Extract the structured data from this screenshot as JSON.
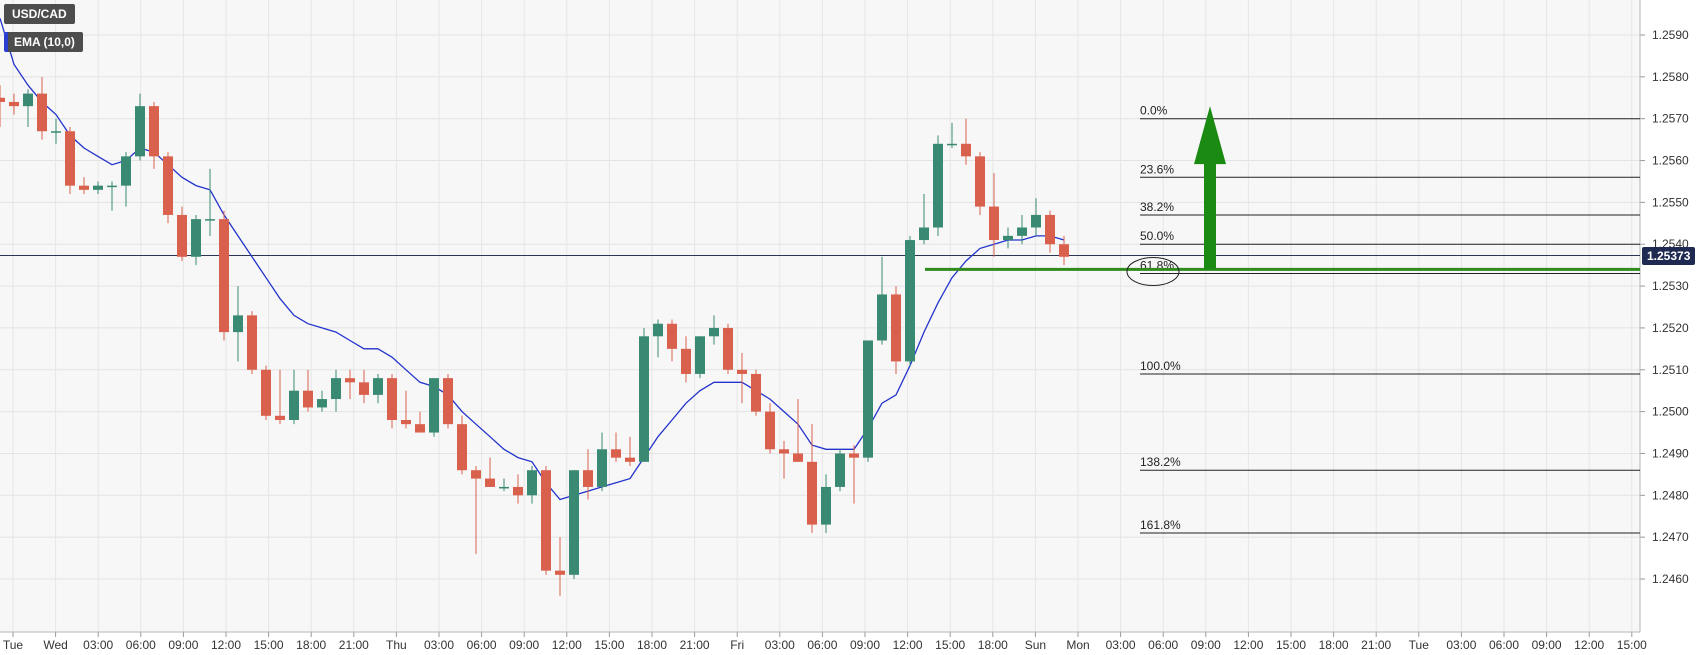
{
  "legend": {
    "symbol": "USD/CAD",
    "indicator": "EMA (10,0)"
  },
  "current_price": "1.25373",
  "colors": {
    "bull": "#3a8a73",
    "bear": "#d9604d",
    "ema": "#2233cc",
    "support": "#2e8b1c",
    "arrow": "#1a8a12",
    "tag": "#1e2a52"
  },
  "chart_data": {
    "type": "candlestick",
    "ylim": [
      1.2455,
      1.26
    ],
    "y_ticks": [
      "1.2590",
      "1.2580",
      "1.2570",
      "1.2560",
      "1.2550",
      "1.2540",
      "1.2530",
      "1.2520",
      "1.2510",
      "1.2500",
      "1.2490",
      "1.2480",
      "1.2470",
      "1.2460"
    ],
    "x_ticks": [
      "Tue",
      "Wed",
      "03:00",
      "06:00",
      "09:00",
      "12:00",
      "15:00",
      "18:00",
      "21:00",
      "Thu",
      "03:00",
      "06:00",
      "09:00",
      "12:00",
      "15:00",
      "18:00",
      "21:00",
      "Fri",
      "03:00",
      "06:00",
      "09:00",
      "12:00",
      "15:00",
      "18:00",
      "Sun",
      "Mon",
      "03:00",
      "06:00",
      "09:00",
      "12:00",
      "15:00",
      "18:00",
      "21:00",
      "Tue",
      "03:00",
      "06:00",
      "09:00",
      "12:00",
      "15:00"
    ],
    "candles": [
      {
        "o": 1.2575,
        "h": 1.2578,
        "l": 1.2568,
        "c": 1.2574
      },
      {
        "o": 1.2574,
        "h": 1.2576,
        "l": 1.2571,
        "c": 1.2573
      },
      {
        "o": 1.2573,
        "h": 1.2577,
        "l": 1.2568,
        "c": 1.2576
      },
      {
        "o": 1.2576,
        "h": 1.258,
        "l": 1.2565,
        "c": 1.2567
      },
      {
        "o": 1.2567,
        "h": 1.257,
        "l": 1.2564,
        "c": 1.2567
      },
      {
        "o": 1.2567,
        "h": 1.2568,
        "l": 1.2552,
        "c": 1.2554
      },
      {
        "o": 1.2554,
        "h": 1.2556,
        "l": 1.2552,
        "c": 1.2553
      },
      {
        "o": 1.2553,
        "h": 1.2555,
        "l": 1.2552,
        "c": 1.2554
      },
      {
        "o": 1.2554,
        "h": 1.2555,
        "l": 1.2548,
        "c": 1.2554
      },
      {
        "o": 1.2554,
        "h": 1.2562,
        "l": 1.2549,
        "c": 1.2561
      },
      {
        "o": 1.2561,
        "h": 1.2576,
        "l": 1.256,
        "c": 1.2573
      },
      {
        "o": 1.2573,
        "h": 1.2574,
        "l": 1.2558,
        "c": 1.2561
      },
      {
        "o": 1.2561,
        "h": 1.2562,
        "l": 1.2545,
        "c": 1.2547
      },
      {
        "o": 1.2547,
        "h": 1.2549,
        "l": 1.2536,
        "c": 1.2537
      },
      {
        "o": 1.2537,
        "h": 1.2547,
        "l": 1.2535,
        "c": 1.2546
      },
      {
        "o": 1.2546,
        "h": 1.2558,
        "l": 1.2542,
        "c": 1.2546
      },
      {
        "o": 1.2546,
        "h": 1.2548,
        "l": 1.2517,
        "c": 1.2519
      },
      {
        "o": 1.2519,
        "h": 1.253,
        "l": 1.2512,
        "c": 1.2523
      },
      {
        "o": 1.2523,
        "h": 1.2524,
        "l": 1.2509,
        "c": 1.251
      },
      {
        "o": 1.251,
        "h": 1.2511,
        "l": 1.2498,
        "c": 1.2499
      },
      {
        "o": 1.2499,
        "h": 1.251,
        "l": 1.2497,
        "c": 1.2498
      },
      {
        "o": 1.2498,
        "h": 1.251,
        "l": 1.2497,
        "c": 1.2505
      },
      {
        "o": 1.2505,
        "h": 1.251,
        "l": 1.25,
        "c": 1.2501
      },
      {
        "o": 1.2501,
        "h": 1.2505,
        "l": 1.25,
        "c": 1.2503
      },
      {
        "o": 1.2503,
        "h": 1.251,
        "l": 1.25,
        "c": 1.2508
      },
      {
        "o": 1.2508,
        "h": 1.251,
        "l": 1.2503,
        "c": 1.2507
      },
      {
        "o": 1.2507,
        "h": 1.251,
        "l": 1.2502,
        "c": 1.2504
      },
      {
        "o": 1.2504,
        "h": 1.2509,
        "l": 1.2502,
        "c": 1.2508
      },
      {
        "o": 1.2508,
        "h": 1.2509,
        "l": 1.2496,
        "c": 1.2498
      },
      {
        "o": 1.2498,
        "h": 1.2505,
        "l": 1.2496,
        "c": 1.2497
      },
      {
        "o": 1.2497,
        "h": 1.25,
        "l": 1.2495,
        "c": 1.2495
      },
      {
        "o": 1.2495,
        "h": 1.2508,
        "l": 1.2494,
        "c": 1.2508
      },
      {
        "o": 1.2508,
        "h": 1.2509,
        "l": 1.2496,
        "c": 1.2497
      },
      {
        "o": 1.2497,
        "h": 1.2499,
        "l": 1.2485,
        "c": 1.2486
      },
      {
        "o": 1.2486,
        "h": 1.2487,
        "l": 1.2466,
        "c": 1.2484
      },
      {
        "o": 1.2484,
        "h": 1.2489,
        "l": 1.2482,
        "c": 1.2482
      },
      {
        "o": 1.2482,
        "h": 1.2484,
        "l": 1.2481,
        "c": 1.2482
      },
      {
        "o": 1.2482,
        "h": 1.2485,
        "l": 1.2478,
        "c": 1.248
      },
      {
        "o": 1.248,
        "h": 1.2487,
        "l": 1.2478,
        "c": 1.2486
      },
      {
        "o": 1.2486,
        "h": 1.2487,
        "l": 1.2461,
        "c": 1.2462
      },
      {
        "o": 1.2462,
        "h": 1.247,
        "l": 1.2456,
        "c": 1.2461
      },
      {
        "o": 1.2461,
        "h": 1.2486,
        "l": 1.246,
        "c": 1.2486
      },
      {
        "o": 1.2486,
        "h": 1.2491,
        "l": 1.2479,
        "c": 1.2482
      },
      {
        "o": 1.2482,
        "h": 1.2495,
        "l": 1.2481,
        "c": 1.2491
      },
      {
        "o": 1.2491,
        "h": 1.2495,
        "l": 1.2488,
        "c": 1.2489
      },
      {
        "o": 1.2489,
        "h": 1.2494,
        "l": 1.2487,
        "c": 1.2488
      },
      {
        "o": 1.2488,
        "h": 1.252,
        "l": 1.2488,
        "c": 1.2518
      },
      {
        "o": 1.2518,
        "h": 1.2522,
        "l": 1.2513,
        "c": 1.2521
      },
      {
        "o": 1.2521,
        "h": 1.2522,
        "l": 1.2512,
        "c": 1.2515
      },
      {
        "o": 1.2515,
        "h": 1.2518,
        "l": 1.2507,
        "c": 1.2509
      },
      {
        "o": 1.2509,
        "h": 1.2518,
        "l": 1.2508,
        "c": 1.2518
      },
      {
        "o": 1.2518,
        "h": 1.2523,
        "l": 1.2516,
        "c": 1.252
      },
      {
        "o": 1.252,
        "h": 1.2521,
        "l": 1.2509,
        "c": 1.251
      },
      {
        "o": 1.251,
        "h": 1.2514,
        "l": 1.2502,
        "c": 1.2509
      },
      {
        "o": 1.2509,
        "h": 1.251,
        "l": 1.2499,
        "c": 1.25
      },
      {
        "o": 1.25,
        "h": 1.2502,
        "l": 1.249,
        "c": 1.2491
      },
      {
        "o": 1.2491,
        "h": 1.2493,
        "l": 1.2484,
        "c": 1.249
      },
      {
        "o": 1.249,
        "h": 1.2503,
        "l": 1.2488,
        "c": 1.2488
      },
      {
        "o": 1.2488,
        "h": 1.2497,
        "l": 1.2471,
        "c": 1.2473
      },
      {
        "o": 1.2473,
        "h": 1.2485,
        "l": 1.2471,
        "c": 1.2482
      },
      {
        "o": 1.2482,
        "h": 1.2491,
        "l": 1.2481,
        "c": 1.249
      },
      {
        "o": 1.249,
        "h": 1.2492,
        "l": 1.2478,
        "c": 1.2489
      },
      {
        "o": 1.2489,
        "h": 1.2517,
        "l": 1.2488,
        "c": 1.2517
      },
      {
        "o": 1.2517,
        "h": 1.2537,
        "l": 1.2516,
        "c": 1.2528
      },
      {
        "o": 1.2528,
        "h": 1.253,
        "l": 1.2509,
        "c": 1.2512
      },
      {
        "o": 1.2512,
        "h": 1.2542,
        "l": 1.2511,
        "c": 1.2541
      },
      {
        "o": 1.2541,
        "h": 1.2552,
        "l": 1.254,
        "c": 1.2544
      },
      {
        "o": 1.2544,
        "h": 1.2566,
        "l": 1.2542,
        "c": 1.2564
      },
      {
        "o": 1.2564,
        "h": 1.2569,
        "l": 1.2563,
        "c": 1.2564
      },
      {
        "o": 1.2564,
        "h": 1.257,
        "l": 1.2559,
        "c": 1.2561
      },
      {
        "o": 1.2561,
        "h": 1.2562,
        "l": 1.2547,
        "c": 1.2549
      },
      {
        "o": 1.2549,
        "h": 1.2557,
        "l": 1.2537,
        "c": 1.2541
      },
      {
        "o": 1.2541,
        "h": 1.2544,
        "l": 1.2539,
        "c": 1.2542
      },
      {
        "o": 1.2542,
        "h": 1.2547,
        "l": 1.254,
        "c": 1.2544
      },
      {
        "o": 1.2544,
        "h": 1.2551,
        "l": 1.2542,
        "c": 1.2547
      },
      {
        "o": 1.2547,
        "h": 1.2548,
        "l": 1.2538,
        "c": 1.254
      },
      {
        "o": 1.254,
        "h": 1.2542,
        "l": 1.2535,
        "c": 1.2537
      }
    ],
    "ema": [
      1.2594,
      1.2583,
      1.2578,
      1.2574,
      1.2571,
      1.2566,
      1.2563,
      1.2561,
      1.2559,
      1.256,
      1.2563,
      1.2562,
      1.2559,
      1.2556,
      1.2554,
      1.2553,
      1.2547,
      1.2542,
      1.2537,
      1.2532,
      1.2527,
      1.2523,
      1.2521,
      1.252,
      1.2519,
      1.2517,
      1.2515,
      1.2515,
      1.2513,
      1.251,
      1.2507,
      1.2506,
      1.2504,
      1.25,
      1.2497,
      1.2494,
      1.2491,
      1.2489,
      1.2488,
      1.2483,
      1.2479,
      1.248,
      1.2481,
      1.2482,
      1.2483,
      1.2484,
      1.2489,
      1.2494,
      1.2498,
      1.2502,
      1.2505,
      1.2507,
      1.2507,
      1.2507,
      1.2505,
      1.2503,
      1.25,
      1.2497,
      1.2492,
      1.2491,
      1.2491,
      1.2491,
      1.2496,
      1.2502,
      1.2504,
      1.2511,
      1.2519,
      1.2526,
      1.2532,
      1.2536,
      1.2539,
      1.254,
      1.2541,
      1.2541,
      1.2542,
      1.2542,
      1.2541
    ],
    "fibonacci": [
      {
        "label": "0.0%",
        "price": 1.257
      },
      {
        "label": "23.6%",
        "price": 1.2556
      },
      {
        "label": "38.2%",
        "price": 1.2547
      },
      {
        "label": "50.0%",
        "price": 1.254
      },
      {
        "label": "61.8%",
        "price": 1.2533
      },
      {
        "label": "100.0%",
        "price": 1.2509
      },
      {
        "label": "138.2%",
        "price": 1.2486
      },
      {
        "label": "161.8%",
        "price": 1.2471
      }
    ],
    "support_line": 1.2534,
    "current_line": 1.25373,
    "arrow": {
      "from": 1.2534,
      "to": 1.2573
    }
  }
}
